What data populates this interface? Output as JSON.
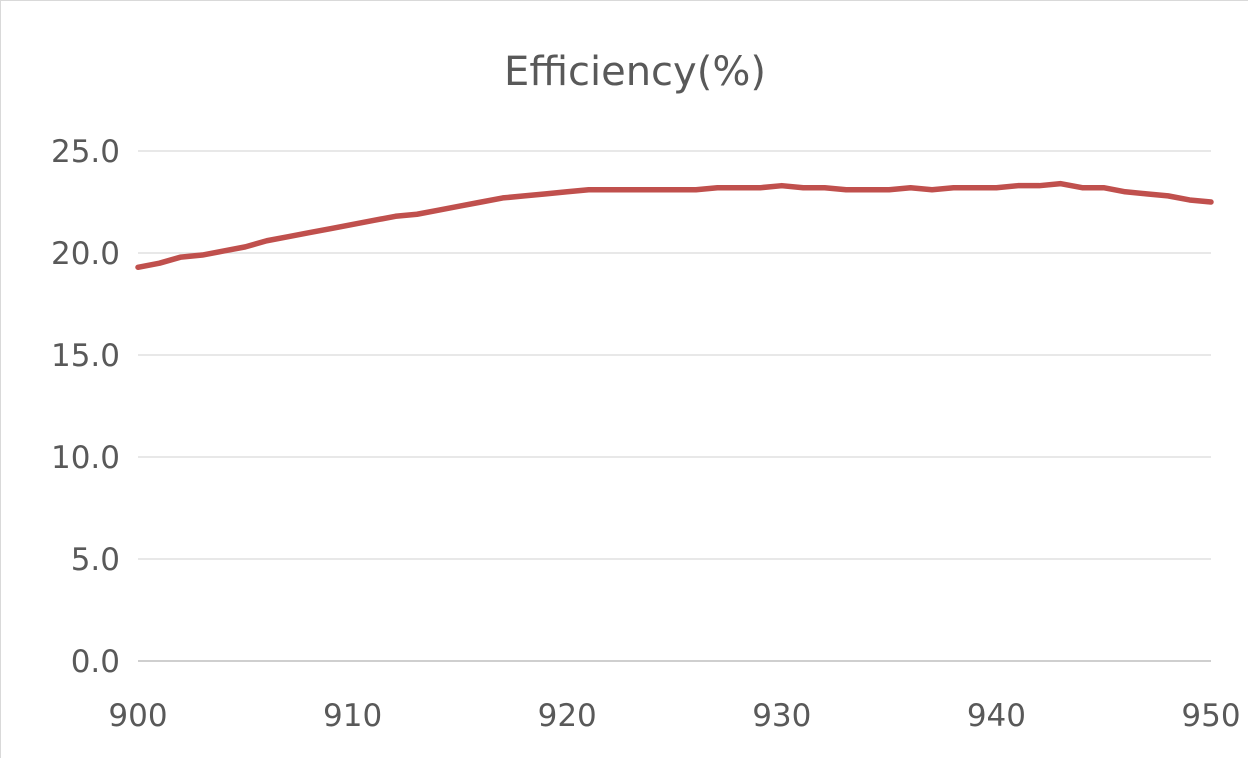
{
  "chart_data": {
    "type": "line",
    "title": "Efficiency(%)",
    "xlabel": "",
    "ylabel": "",
    "xlim": [
      900,
      950
    ],
    "ylim": [
      0,
      25
    ],
    "x_ticks": [
      "900",
      "910",
      "920",
      "930",
      "940",
      "950"
    ],
    "x_tick_values": [
      900,
      910,
      920,
      930,
      940,
      950
    ],
    "y_ticks": [
      "0.0",
      "5.0",
      "10.0",
      "15.0",
      "20.0",
      "25.0"
    ],
    "y_tick_values": [
      0,
      5,
      10,
      15,
      20,
      25
    ],
    "grid": "horizontal",
    "legend": "none",
    "series": [
      {
        "color": "#c0504d",
        "x": [
          900,
          901,
          902,
          903,
          904,
          905,
          906,
          907,
          908,
          909,
          910,
          911,
          912,
          913,
          914,
          915,
          916,
          917,
          918,
          919,
          920,
          921,
          922,
          923,
          924,
          925,
          926,
          927,
          928,
          929,
          930,
          931,
          932,
          933,
          934,
          935,
          936,
          937,
          938,
          939,
          940,
          941,
          942,
          943,
          944,
          945,
          946,
          947,
          948,
          949,
          950
        ],
        "values": [
          19.3,
          19.5,
          19.8,
          19.9,
          20.1,
          20.3,
          20.6,
          20.8,
          21.0,
          21.2,
          21.4,
          21.6,
          21.8,
          21.9,
          22.1,
          22.3,
          22.5,
          22.7,
          22.8,
          22.9,
          23.0,
          23.1,
          23.1,
          23.1,
          23.1,
          23.1,
          23.1,
          23.2,
          23.2,
          23.2,
          23.3,
          23.2,
          23.2,
          23.1,
          23.1,
          23.1,
          23.2,
          23.1,
          23.2,
          23.2,
          23.2,
          23.3,
          23.3,
          23.4,
          23.2,
          23.2,
          23.0,
          22.9,
          22.8,
          22.6,
          22.5
        ]
      }
    ]
  }
}
